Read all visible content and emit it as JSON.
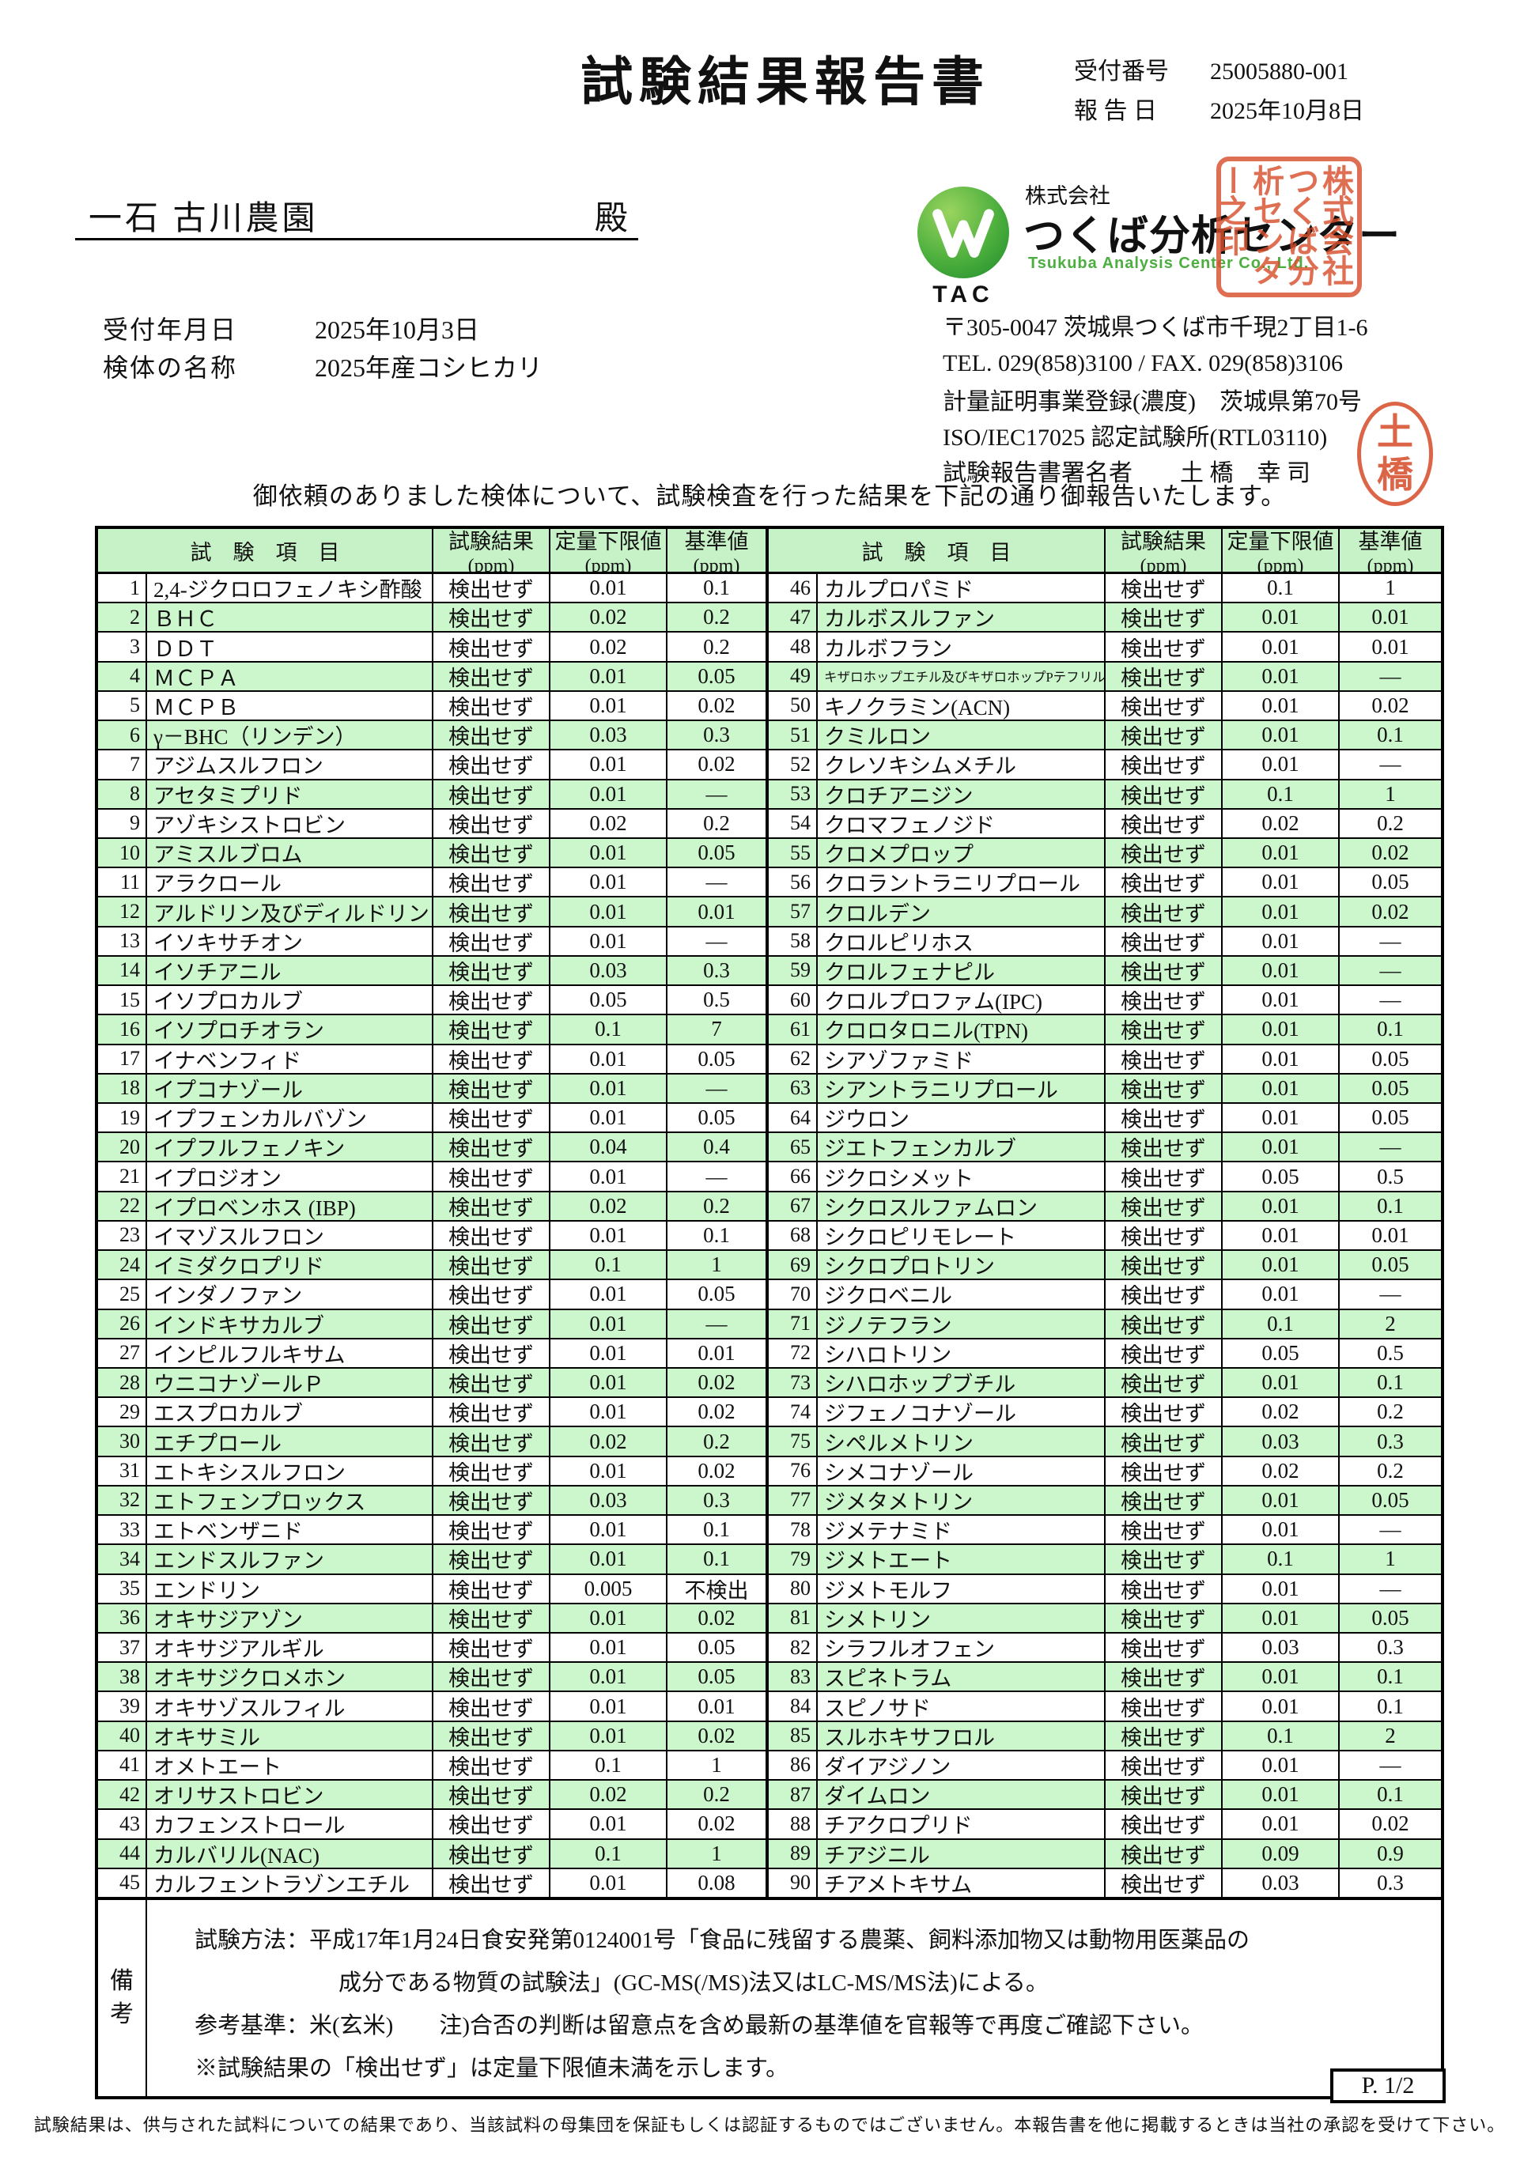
{
  "doc": {
    "title": "試験結果報告書",
    "receipt_label": "受付番号",
    "receipt_no": "25005880-001",
    "report_label": "報 告 日",
    "report_date": "2025年10月8日",
    "recipient": "一石 古川農園",
    "honorific": "殿",
    "received_label": "受付年月日",
    "received_date": "2025年10月3日",
    "sample_label": "検体の名称",
    "sample_name": "2025年産コシヒカリ",
    "intro": "御依頼のありました検体について、試験検査を行った結果を下記の通り御報告いたします。"
  },
  "company": {
    "prefix": "株式会社",
    "name": "つくば分析センター",
    "name_en": "Tsukuba Analysis Center Co., Ltd.",
    "logo_text": "TAC",
    "address": "〒305-0047 茨城県つくば市千現2丁目1-6",
    "tel_fax": "TEL. 029(858)3100 / FAX. 029(858)3106",
    "registration": "計量証明事業登録(濃度)　茨城県第70号",
    "iso": "ISO/IEC17025 認定試験所(RTL03110)",
    "signer_label": "試験報告書署名者",
    "signer_name": "土 橋　幸 司",
    "seal_square": "株式会社つくば分析センター之印",
    "seal_round_top": "土",
    "seal_round_bottom": "橋"
  },
  "colors": {
    "row_green": "#ccf7cc",
    "header_green": "#c7f2c7",
    "seal_red": "#d8502e",
    "logo_green": "#4caf3d",
    "en_text_green": "#4cae3f"
  },
  "table": {
    "header": {
      "item": "試　験　項　目",
      "result": "試験結果",
      "loq": "定量下限値",
      "standard": "基準値",
      "unit": "(ppm)"
    },
    "result_text": "検出せず",
    "rows": [
      {
        "name": "2,4-ジクロロフェノキシ酢酸",
        "loq": "0.01",
        "std": "0.1"
      },
      {
        "name": "ＢＨＣ",
        "loq": "0.02",
        "std": "0.2"
      },
      {
        "name": "ＤＤＴ",
        "loq": "0.02",
        "std": "0.2"
      },
      {
        "name": "ＭＣＰＡ",
        "loq": "0.01",
        "std": "0.05"
      },
      {
        "name": "ＭＣＰＢ",
        "loq": "0.01",
        "std": "0.02"
      },
      {
        "name": "γ－BHC（リンデン）",
        "loq": "0.03",
        "std": "0.3"
      },
      {
        "name": "アジムスルフロン",
        "loq": "0.01",
        "std": "0.02"
      },
      {
        "name": "アセタミプリド",
        "loq": "0.01",
        "std": "―"
      },
      {
        "name": "アゾキシストロビン",
        "loq": "0.02",
        "std": "0.2"
      },
      {
        "name": "アミスルブロム",
        "loq": "0.01",
        "std": "0.05"
      },
      {
        "name": "アラクロール",
        "loq": "0.01",
        "std": "―"
      },
      {
        "name": "アルドリン及びディルドリン",
        "loq": "0.01",
        "std": "0.01"
      },
      {
        "name": "イソキサチオン",
        "loq": "0.01",
        "std": "―"
      },
      {
        "name": "イソチアニル",
        "loq": "0.03",
        "std": "0.3"
      },
      {
        "name": "イソプロカルブ",
        "loq": "0.05",
        "std": "0.5"
      },
      {
        "name": "イソプロチオラン",
        "loq": "0.1",
        "std": "7"
      },
      {
        "name": "イナベンフィド",
        "loq": "0.01",
        "std": "0.05"
      },
      {
        "name": "イプコナゾール",
        "loq": "0.01",
        "std": "―"
      },
      {
        "name": "イプフェンカルバゾン",
        "loq": "0.01",
        "std": "0.05"
      },
      {
        "name": "イプフルフェノキン",
        "loq": "0.04",
        "std": "0.4"
      },
      {
        "name": "イプロジオン",
        "loq": "0.01",
        "std": "―"
      },
      {
        "name": "イプロベンホス (IBP)",
        "loq": "0.02",
        "std": "0.2"
      },
      {
        "name": "イマゾスルフロン",
        "loq": "0.01",
        "std": "0.1"
      },
      {
        "name": "イミダクロプリド",
        "loq": "0.1",
        "std": "1"
      },
      {
        "name": "インダノファン",
        "loq": "0.01",
        "std": "0.05"
      },
      {
        "name": "インドキサカルブ",
        "loq": "0.01",
        "std": "―"
      },
      {
        "name": "インピルフルキサム",
        "loq": "0.01",
        "std": "0.01"
      },
      {
        "name": "ウニコナゾールＰ",
        "loq": "0.01",
        "std": "0.02"
      },
      {
        "name": "エスプロカルブ",
        "loq": "0.01",
        "std": "0.02"
      },
      {
        "name": "エチプロール",
        "loq": "0.02",
        "std": "0.2"
      },
      {
        "name": "エトキシスルフロン",
        "loq": "0.01",
        "std": "0.02"
      },
      {
        "name": "エトフェンプロックス",
        "loq": "0.03",
        "std": "0.3"
      },
      {
        "name": "エトベンザニド",
        "loq": "0.01",
        "std": "0.1"
      },
      {
        "name": "エンドスルファン",
        "loq": "0.01",
        "std": "0.1"
      },
      {
        "name": "エンドリン",
        "loq": "0.005",
        "std": "不検出"
      },
      {
        "name": "オキサジアゾン",
        "loq": "0.01",
        "std": "0.02"
      },
      {
        "name": "オキサジアルギル",
        "loq": "0.01",
        "std": "0.05"
      },
      {
        "name": "オキサジクロメホン",
        "loq": "0.01",
        "std": "0.05"
      },
      {
        "name": "オキサゾスルフィル",
        "loq": "0.01",
        "std": "0.01"
      },
      {
        "name": "オキサミル",
        "loq": "0.01",
        "std": "0.02"
      },
      {
        "name": "オメトエート",
        "loq": "0.1",
        "std": "1"
      },
      {
        "name": "オリサストロビン",
        "loq": "0.02",
        "std": "0.2"
      },
      {
        "name": "カフェンストロール",
        "loq": "0.01",
        "std": "0.02"
      },
      {
        "name": "カルバリル(NAC)",
        "loq": "0.1",
        "std": "1"
      },
      {
        "name": "カルフェントラゾンエチル",
        "loq": "0.01",
        "std": "0.08"
      },
      {
        "name": "カルプロパミド",
        "loq": "0.1",
        "std": "1"
      },
      {
        "name": "カルボスルファン",
        "loq": "0.01",
        "std": "0.01"
      },
      {
        "name": "カルボフラン",
        "loq": "0.01",
        "std": "0.01"
      },
      {
        "name": "キザロホップエチル及びキザロホップPテフリル",
        "loq": "0.01",
        "std": "―",
        "small": true
      },
      {
        "name": "キノクラミン(ACN)",
        "loq": "0.01",
        "std": "0.02"
      },
      {
        "name": "クミルロン",
        "loq": "0.01",
        "std": "0.1"
      },
      {
        "name": "クレソキシムメチル",
        "loq": "0.01",
        "std": "―"
      },
      {
        "name": "クロチアニジン",
        "loq": "0.1",
        "std": "1"
      },
      {
        "name": "クロマフェノジド",
        "loq": "0.02",
        "std": "0.2"
      },
      {
        "name": "クロメプロップ",
        "loq": "0.01",
        "std": "0.02"
      },
      {
        "name": "クロラントラニリプロール",
        "loq": "0.01",
        "std": "0.05"
      },
      {
        "name": "クロルデン",
        "loq": "0.01",
        "std": "0.02"
      },
      {
        "name": "クロルピリホス",
        "loq": "0.01",
        "std": "―"
      },
      {
        "name": "クロルフェナピル",
        "loq": "0.01",
        "std": "―"
      },
      {
        "name": "クロルプロファム(IPC)",
        "loq": "0.01",
        "std": "―"
      },
      {
        "name": "クロロタロニル(TPN)",
        "loq": "0.01",
        "std": "0.1"
      },
      {
        "name": "シアゾファミド",
        "loq": "0.01",
        "std": "0.05"
      },
      {
        "name": "シアントラニリプロール",
        "loq": "0.01",
        "std": "0.05"
      },
      {
        "name": "ジウロン",
        "loq": "0.01",
        "std": "0.05"
      },
      {
        "name": "ジエトフェンカルブ",
        "loq": "0.01",
        "std": "―"
      },
      {
        "name": "ジクロシメット",
        "loq": "0.05",
        "std": "0.5"
      },
      {
        "name": "シクロスルファムロン",
        "loq": "0.01",
        "std": "0.1"
      },
      {
        "name": "シクロピリモレート",
        "loq": "0.01",
        "std": "0.01"
      },
      {
        "name": "シクロプロトリン",
        "loq": "0.01",
        "std": "0.05"
      },
      {
        "name": "ジクロベニル",
        "loq": "0.01",
        "std": "―"
      },
      {
        "name": "ジノテフラン",
        "loq": "0.1",
        "std": "2"
      },
      {
        "name": "シハロトリン",
        "loq": "0.05",
        "std": "0.5"
      },
      {
        "name": "シハロホップブチル",
        "loq": "0.01",
        "std": "0.1"
      },
      {
        "name": "ジフェノコナゾール",
        "loq": "0.02",
        "std": "0.2"
      },
      {
        "name": "シペルメトリン",
        "loq": "0.03",
        "std": "0.3"
      },
      {
        "name": "シメコナゾール",
        "loq": "0.02",
        "std": "0.2"
      },
      {
        "name": "ジメタメトリン",
        "loq": "0.01",
        "std": "0.05"
      },
      {
        "name": "ジメテナミド",
        "loq": "0.01",
        "std": "―"
      },
      {
        "name": "ジメトエート",
        "loq": "0.1",
        "std": "1"
      },
      {
        "name": "ジメトモルフ",
        "loq": "0.01",
        "std": "―"
      },
      {
        "name": "シメトリン",
        "loq": "0.01",
        "std": "0.05"
      },
      {
        "name": "シラフルオフェン",
        "loq": "0.03",
        "std": "0.3"
      },
      {
        "name": "スピネトラム",
        "loq": "0.01",
        "std": "0.1"
      },
      {
        "name": "スピノサド",
        "loq": "0.01",
        "std": "0.1"
      },
      {
        "name": "スルホキサフロル",
        "loq": "0.1",
        "std": "2"
      },
      {
        "name": "ダイアジノン",
        "loq": "0.01",
        "std": "―"
      },
      {
        "name": "ダイムロン",
        "loq": "0.01",
        "std": "0.1"
      },
      {
        "name": "チアクロプリド",
        "loq": "0.01",
        "std": "0.02"
      },
      {
        "name": "チアジニル",
        "loq": "0.09",
        "std": "0.9"
      },
      {
        "name": "チアメトキサム",
        "loq": "0.03",
        "std": "0.3"
      }
    ]
  },
  "remarks": {
    "label_top": "備",
    "label_bottom": "考",
    "line1": "試験方法：平成17年1月24日食安発第0124001号「食品に残留する農薬、飼料添加物又は動物用医薬品の",
    "line2": "成分である物質の試験法」(GC-MS(/MS)法又はLC-MS/MS法)による。",
    "line3": "参考基準：米(玄米)　　注)合否の判断は留意点を含め最新の基準値を官報等で再度ご確認下さい。",
    "line4": "※試験結果の「検出せず」は定量下限値未満を示します。"
  },
  "footer": {
    "page": "P. 1/2",
    "disclaimer": "試験結果は、供与された試料についての結果であり、当該試料の母集団を保証もしくは認証するものではございません。本報告書を他に掲載するときは当社の承認を受けて下さい。"
  }
}
